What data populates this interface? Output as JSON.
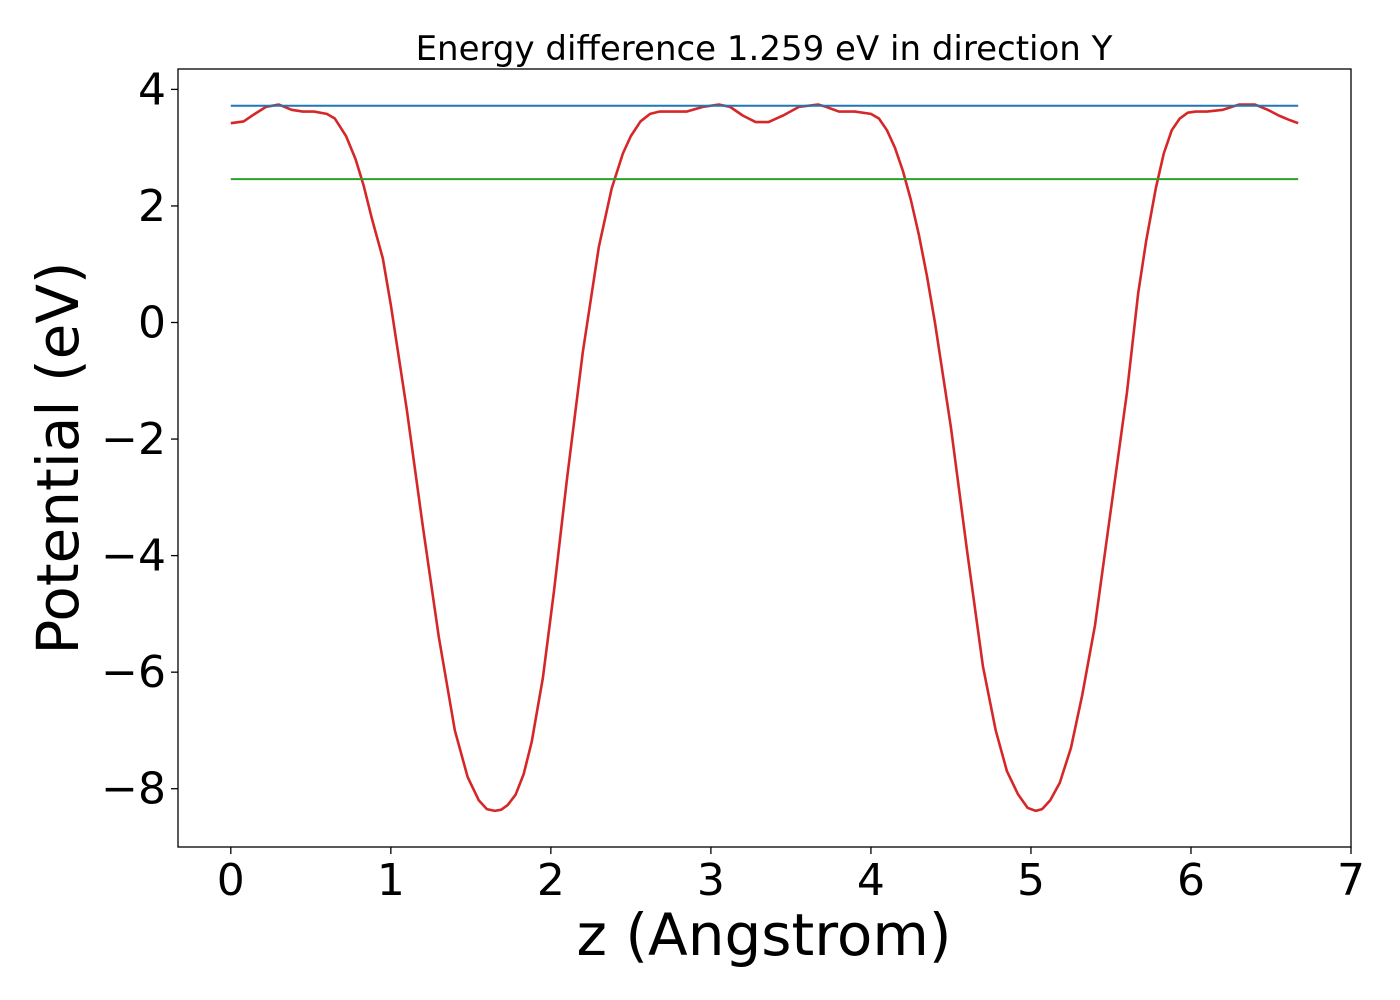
{
  "chart_data": {
    "type": "line",
    "title": "Energy difference 1.259 eV in direction Y",
    "xlabel": "z (Angstrom)",
    "ylabel": "Potential (eV)",
    "xlim": [
      -0.33,
      7.0
    ],
    "ylim": [
      -9.0,
      4.35
    ],
    "xticks": [
      0,
      1,
      2,
      3,
      4,
      5,
      6,
      7
    ],
    "xtick_labels": [
      "0",
      "1",
      "2",
      "3",
      "4",
      "5",
      "6",
      "7"
    ],
    "yticks": [
      -8,
      -6,
      -4,
      -2,
      0,
      2,
      4
    ],
    "ytick_labels": [
      "−8",
      "−6",
      "−4",
      "−2",
      "0",
      "2",
      "4"
    ],
    "grid": false,
    "legend": "none",
    "series": [
      {
        "color": "#d62728",
        "x": [
          0.0,
          0.08,
          0.15,
          0.22,
          0.3,
          0.38,
          0.45,
          0.52,
          0.6,
          0.65,
          0.72,
          0.78,
          0.83,
          0.88,
          0.95,
          1.0,
          1.05,
          1.1,
          1.15,
          1.2,
          1.3,
          1.4,
          1.48,
          1.55,
          1.6,
          1.65,
          1.69,
          1.73,
          1.78,
          1.83,
          1.88,
          1.95,
          2.02,
          2.1,
          2.2,
          2.3,
          2.38,
          2.45,
          2.5,
          2.56,
          2.62,
          2.68,
          2.75,
          2.85,
          2.95,
          3.05,
          3.12,
          3.2,
          3.28,
          3.36,
          3.45,
          3.55,
          3.67,
          3.72,
          3.8,
          3.9,
          4.0,
          4.05,
          4.1,
          4.15,
          4.2,
          4.25,
          4.3,
          4.35,
          4.4,
          4.5,
          4.6,
          4.7,
          4.78,
          4.85,
          4.92,
          4.98,
          5.03,
          5.07,
          5.12,
          5.18,
          5.25,
          5.32,
          5.4,
          5.5,
          5.6,
          5.67,
          5.72,
          5.78,
          5.83,
          5.88,
          5.93,
          5.98,
          6.03,
          6.1,
          6.2,
          6.3,
          6.4,
          6.48,
          6.55,
          6.62,
          6.67
        ],
        "y": [
          3.42,
          3.45,
          3.58,
          3.7,
          3.74,
          3.65,
          3.62,
          3.62,
          3.58,
          3.5,
          3.2,
          2.8,
          2.35,
          1.8,
          1.1,
          0.3,
          -0.6,
          -1.5,
          -2.5,
          -3.5,
          -5.4,
          -7.0,
          -7.8,
          -8.2,
          -8.35,
          -8.38,
          -8.36,
          -8.28,
          -8.1,
          -7.75,
          -7.2,
          -6.1,
          -4.6,
          -2.7,
          -0.5,
          1.3,
          2.3,
          2.9,
          3.2,
          3.45,
          3.58,
          3.62,
          3.62,
          3.62,
          3.7,
          3.74,
          3.7,
          3.55,
          3.44,
          3.44,
          3.55,
          3.7,
          3.74,
          3.7,
          3.62,
          3.62,
          3.58,
          3.5,
          3.3,
          3.0,
          2.6,
          2.1,
          1.5,
          0.8,
          0.0,
          -1.8,
          -3.9,
          -5.9,
          -7.0,
          -7.7,
          -8.1,
          -8.33,
          -8.38,
          -8.35,
          -8.2,
          -7.9,
          -7.3,
          -6.4,
          -5.2,
          -3.2,
          -1.2,
          0.5,
          1.4,
          2.3,
          2.9,
          3.3,
          3.5,
          3.6,
          3.62,
          3.62,
          3.65,
          3.74,
          3.74,
          3.65,
          3.55,
          3.47,
          3.42
        ]
      },
      {
        "color": "#1f77b4",
        "x": [
          0.0,
          6.67
        ],
        "y": [
          3.72,
          3.72
        ]
      },
      {
        "color": "#2ca02c",
        "x": [
          0.0,
          6.67
        ],
        "y": [
          2.46,
          2.46
        ]
      }
    ]
  }
}
